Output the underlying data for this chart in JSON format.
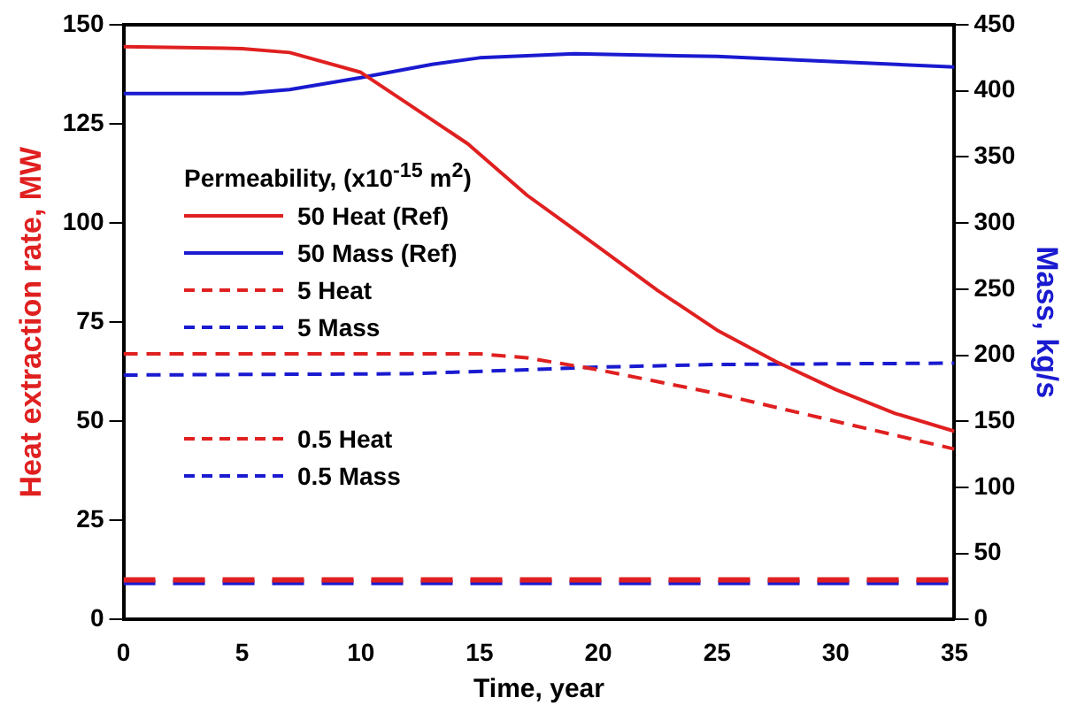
{
  "chart_data": {
    "type": "line",
    "xlabel": "Time, year",
    "ylabel": "Heat extraction rate, MW",
    "y2label": "Mass, kg/s",
    "legend_title": "Permeability, (x10$^{-15}$ m$^{2}$)",
    "legend": "left",
    "grid": false,
    "marker": "none",
    "xlim": [
      0,
      35
    ],
    "xticks": [
      0,
      5,
      10,
      15,
      20,
      25,
      30,
      35
    ],
    "ylim": [
      0,
      150
    ],
    "yticks": [
      0,
      25,
      50,
      75,
      100,
      125,
      150
    ],
    "y2lim": [
      0,
      450
    ],
    "y2ticks": [
      0,
      50,
      100,
      150,
      200,
      250,
      300,
      350,
      400,
      450
    ],
    "series": [
      {
        "name": "50 Heat (Ref)",
        "color": "#e02020",
        "line_style": "solid",
        "x": [
          0,
          5,
          7,
          10,
          12,
          14.5,
          17,
          20,
          22.5,
          25,
          27.5,
          30,
          32.5,
          35
        ],
        "values": [
          144.5,
          144,
          143,
          138,
          130,
          120,
          107,
          94,
          83,
          73,
          65,
          58,
          52,
          47.5
        ]
      },
      {
        "name": "50 Mass (Ref)",
        "color": "#1a1ad0",
        "line_style": "solid",
        "axis": "y2",
        "x": [
          0,
          5,
          7,
          10,
          13,
          15,
          19,
          25,
          30,
          35
        ],
        "values": [
          398,
          398,
          401,
          410,
          420,
          425,
          428,
          426,
          422,
          418
        ]
      },
      {
        "name": "5 Heat",
        "color": "#e02020",
        "line_style": "dashed",
        "x": [
          0,
          15,
          17,
          20,
          25,
          30,
          35
        ],
        "values": [
          67,
          67,
          66,
          63,
          57,
          50,
          43
        ]
      },
      {
        "name": "5 Mass",
        "color": "#1a1ad0",
        "line_style": "dashed",
        "axis": "y2",
        "x": [
          0,
          12,
          17,
          20,
          25,
          35
        ],
        "values": [
          185,
          186,
          189,
          191,
          193,
          194
        ]
      },
      {
        "name": "0.5 Heat",
        "color": "#e02020",
        "line_style": "dashed",
        "x": [
          0,
          35
        ],
        "values": [
          10,
          10
        ]
      },
      {
        "name": "0.5 Mass",
        "color": "#1a1ad0",
        "line_style": "dashed",
        "axis": "y2",
        "x": [
          0,
          35
        ],
        "values": [
          28,
          28
        ]
      }
    ]
  }
}
